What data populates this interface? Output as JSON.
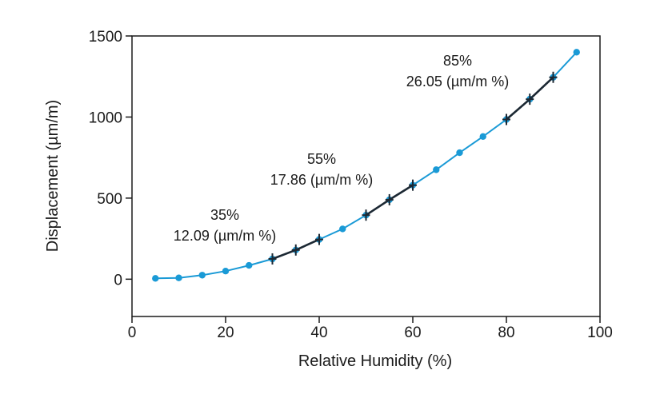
{
  "chart_data": {
    "type": "line",
    "title": "",
    "xlabel": "Relative Humidity (%)",
    "ylabel": "Displacement (µm/m)",
    "xlim": [
      0,
      100
    ],
    "ylim": [
      -230,
      1500
    ],
    "grid": false,
    "xticks": [
      0,
      20,
      40,
      60,
      80,
      100
    ],
    "xtick_labels": [
      "0",
      "20",
      "40",
      "60",
      "80",
      "100"
    ],
    "yticks": [
      0,
      500,
      1000,
      1500
    ],
    "ytick_labels": [
      "0",
      "500",
      "1000",
      "1500"
    ],
    "series": [
      {
        "color": "#1a9ad6",
        "x": [
          5,
          10,
          15,
          20,
          25,
          30,
          35,
          40,
          45,
          50,
          55,
          60,
          65,
          70,
          75,
          80,
          85,
          90,
          95
        ],
        "y": [
          5,
          8,
          25,
          50,
          85,
          125,
          180,
          245,
          310,
          395,
          490,
          580,
          675,
          780,
          880,
          985,
          1110,
          1245,
          1400
        ]
      }
    ],
    "fit_segments": [
      {
        "color": "#1c2833",
        "x": [
          30,
          35,
          40
        ],
        "y": [
          125,
          180,
          245
        ]
      },
      {
        "color": "#1c2833",
        "x": [
          50,
          55,
          60
        ],
        "y": [
          395,
          490,
          580
        ]
      },
      {
        "color": "#1c2833",
        "x": [
          80,
          85,
          90
        ],
        "y": [
          985,
          1110,
          1245
        ]
      }
    ],
    "annotations": [
      {
        "line1": "35%",
        "line2": "12.09 (µm/m %)"
      },
      {
        "line1": "55%",
        "line2": "17.86 (µm/m %)"
      },
      {
        "line1": "85%",
        "line2": "26.05 (µm/m %)"
      }
    ]
  }
}
